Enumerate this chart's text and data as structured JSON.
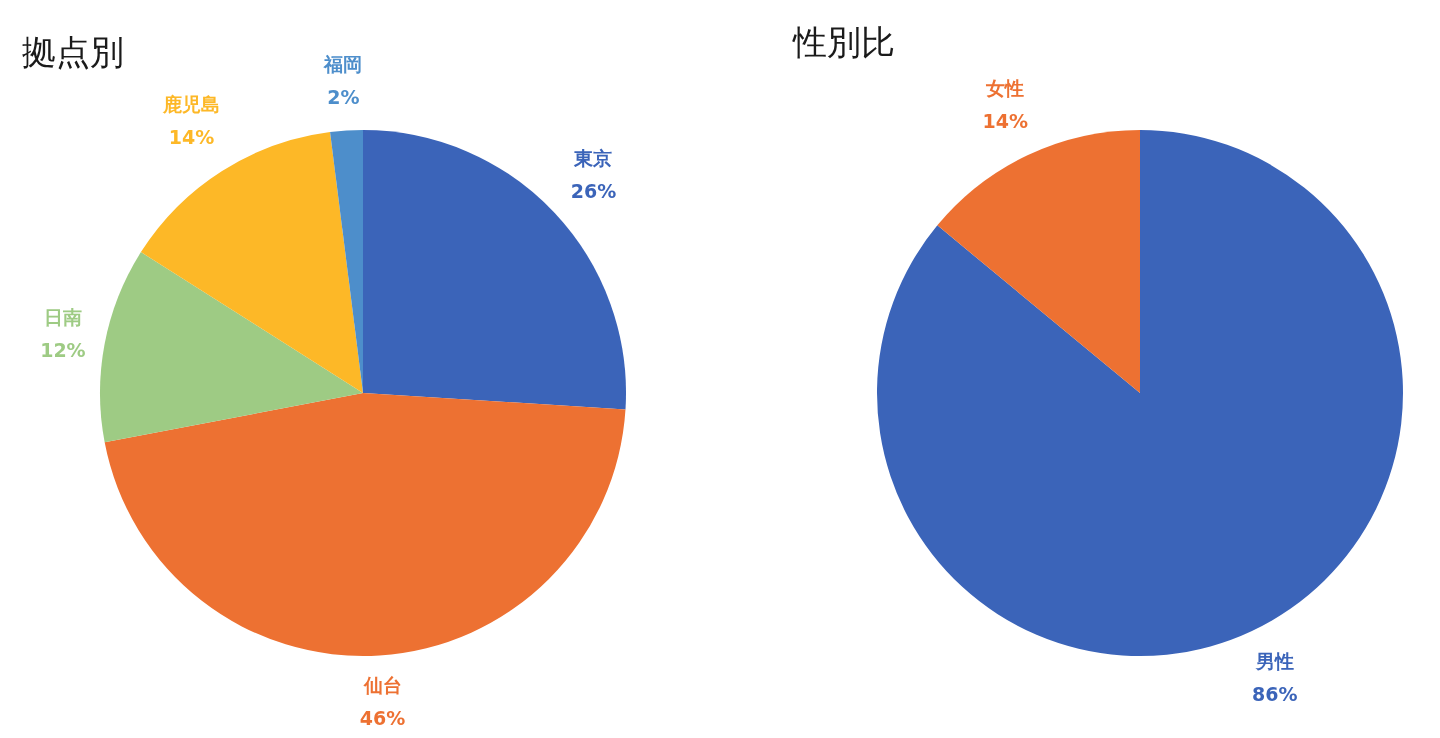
{
  "chart_data": [
    {
      "type": "pie",
      "title": "拠点別",
      "categories": [
        "東京",
        "仙台",
        "日南",
        "鹿児島",
        "福岡"
      ],
      "values": [
        26,
        46,
        12,
        14,
        2
      ],
      "colors": [
        "#3b64b9",
        "#ed7132",
        "#9ecb84",
        "#fdb827",
        "#4d8ecb"
      ],
      "value_labels": [
        "26%",
        "46%",
        "12%",
        "14%",
        "2%"
      ]
    },
    {
      "type": "pie",
      "title": "性別比",
      "categories": [
        "男性",
        "女性"
      ],
      "values": [
        86,
        14
      ],
      "colors": [
        "#3b64b9",
        "#ed7132"
      ],
      "value_labels": [
        "86%",
        "14%"
      ]
    }
  ]
}
